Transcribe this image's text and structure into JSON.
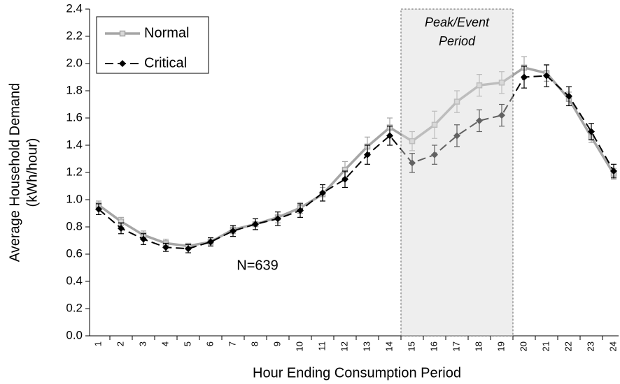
{
  "chart_data": {
    "type": "line",
    "ylabel": [
      "Average Household Demand",
      "(kWh/hour)"
    ],
    "xlabel": "Hour Ending Consumption Period",
    "annotation": "N=639",
    "highlight": {
      "x_start": "15",
      "x_end": "19",
      "label": [
        "Peak/Event",
        "Period"
      ],
      "color": "#d9d9d9"
    },
    "categories": [
      "1",
      "2",
      "3",
      "4",
      "5",
      "6",
      "7",
      "8",
      "9",
      "10",
      "11",
      "12",
      "13",
      "14",
      "15",
      "16",
      "17",
      "18",
      "19",
      "20",
      "21",
      "22",
      "23",
      "24"
    ],
    "series": [
      {
        "name": "Normal",
        "color": "#a6a6a6",
        "marker": "square",
        "dash": false,
        "values": [
          0.96,
          0.84,
          0.74,
          0.68,
          0.66,
          0.69,
          0.78,
          0.82,
          0.87,
          0.94,
          1.04,
          1.22,
          1.39,
          1.53,
          1.43,
          1.55,
          1.72,
          1.84,
          1.86,
          1.97,
          1.93,
          1.74,
          1.46,
          1.19
        ],
        "errors": [
          0.03,
          0.03,
          0.03,
          0.03,
          0.02,
          0.03,
          0.03,
          0.04,
          0.04,
          0.04,
          0.05,
          0.06,
          0.07,
          0.07,
          0.07,
          0.1,
          0.08,
          0.08,
          0.08,
          0.08,
          0.06,
          0.05,
          0.04,
          0.04
        ]
      },
      {
        "name": "Critical",
        "color": "#000000",
        "marker": "diamond",
        "dash": true,
        "values": [
          0.93,
          0.79,
          0.71,
          0.65,
          0.64,
          0.69,
          0.77,
          0.82,
          0.86,
          0.92,
          1.05,
          1.15,
          1.33,
          1.47,
          1.27,
          1.33,
          1.47,
          1.58,
          1.62,
          1.9,
          1.91,
          1.76,
          1.5,
          1.21
        ],
        "errors": [
          0.04,
          0.04,
          0.04,
          0.03,
          0.03,
          0.03,
          0.04,
          0.04,
          0.05,
          0.05,
          0.06,
          0.06,
          0.07,
          0.07,
          0.07,
          0.07,
          0.08,
          0.08,
          0.08,
          0.08,
          0.08,
          0.07,
          0.06,
          0.05
        ]
      }
    ],
    "ylim": [
      0,
      2.4
    ],
    "yticks": [
      {
        "value": 0,
        "label": "0.0"
      },
      0.2,
      0.4,
      0.6,
      0.8,
      {
        "value": 1,
        "label": "1.0"
      },
      1.2,
      1.4,
      1.6,
      1.8,
      {
        "value": 2,
        "label": "2.0"
      },
      2.2,
      2.4
    ],
    "legend": "top-left"
  }
}
